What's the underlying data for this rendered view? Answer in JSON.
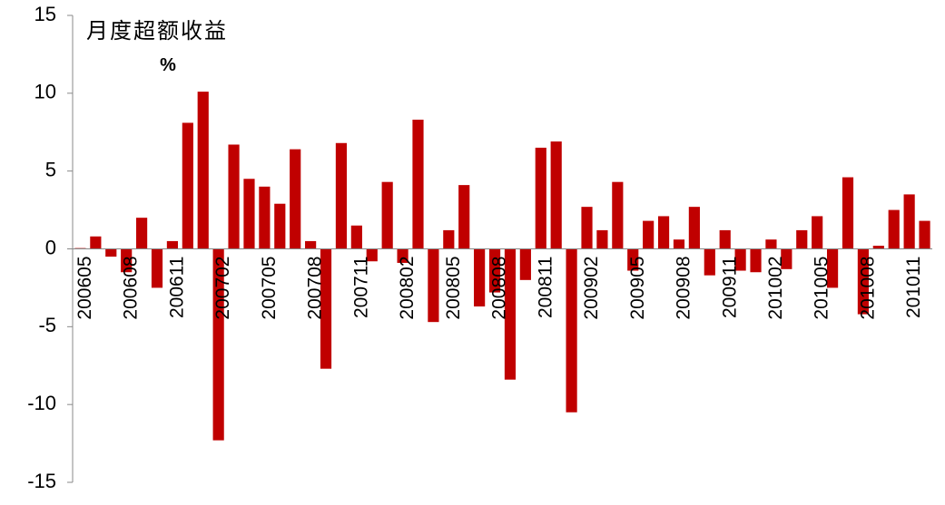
{
  "chart_data": {
    "type": "bar",
    "title": "月度超额收益",
    "ylabel": "%",
    "categories": [
      "200605",
      null,
      null,
      "200608",
      null,
      null,
      "200611",
      null,
      null,
      "200702",
      null,
      null,
      "200705",
      null,
      null,
      "200708",
      null,
      null,
      "200711",
      null,
      null,
      "200802",
      null,
      null,
      "200805",
      null,
      null,
      "200808",
      null,
      null,
      "200811",
      null,
      null,
      "200902",
      null,
      null,
      "200905",
      null,
      null,
      "200908",
      null,
      null,
      "200911",
      null,
      null,
      "201002",
      null,
      null,
      "201005",
      null,
      null,
      "201008",
      null,
      null,
      "201011",
      null
    ],
    "values": [
      0.05,
      0.8,
      -0.5,
      -1.5,
      2.0,
      -2.5,
      0.5,
      8.1,
      10.1,
      -12.3,
      6.7,
      4.5,
      4.0,
      2.9,
      6.4,
      0.5,
      -7.7,
      6.8,
      1.5,
      -0.8,
      4.3,
      -0.9,
      8.3,
      -4.7,
      1.2,
      4.1,
      -3.7,
      -2.8,
      -8.4,
      -2.0,
      6.5,
      6.9,
      -10.5,
      2.7,
      1.2,
      4.3,
      -1.4,
      1.8,
      2.1,
      0.6,
      2.7,
      -1.7,
      1.2,
      -1.4,
      -1.5,
      0.6,
      -1.3,
      1.2,
      2.1,
      -2.5,
      4.6,
      -4.2,
      0.2,
      2.5,
      3.5,
      1.8
    ],
    "color": "#c00000",
    "ylim": [
      -15,
      15
    ],
    "yticks": [
      -15,
      -10,
      -5,
      0,
      5,
      10,
      15
    ]
  }
}
